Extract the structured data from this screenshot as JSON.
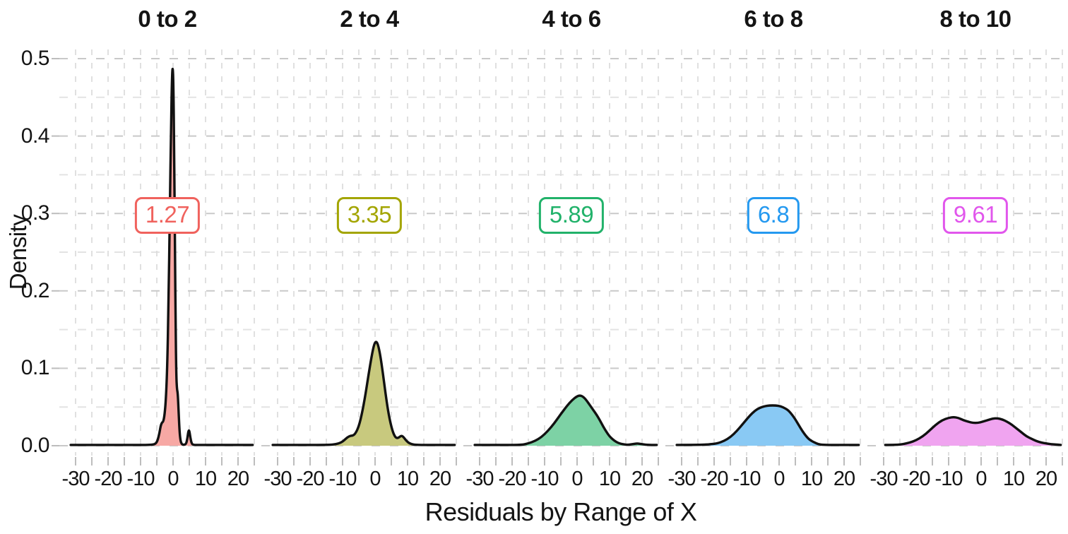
{
  "chart_data": {
    "type": "area",
    "subtype": "faceted-density",
    "title": "",
    "xlabel": "Residuals by Range of X",
    "ylabel": "Density",
    "x_ticks": [
      "-30",
      "-20",
      "-10",
      "0",
      "10",
      "20"
    ],
    "y_ticks": [
      "0.0",
      "0.1",
      "0.2",
      "0.3",
      "0.4",
      "0.5"
    ],
    "x_range": [
      -35,
      25
    ],
    "y_range": [
      0,
      0.5
    ],
    "grid": {
      "style": "dashed",
      "minor_y_step": 0.05,
      "minor_x_step": 5,
      "color_major": "#c9c9c9",
      "color_minor": "#e3e3e3",
      "color_vertical": "#dcdcdc"
    },
    "legend": "none",
    "curve_stroke": "#111111",
    "facets": [
      {
        "title": "0 to 2",
        "mean_label": "1.27",
        "color": "#F0625D",
        "fill": "#F7A8A4",
        "points": [
          [
            -31.5,
            0.001
          ],
          [
            -20,
            0.001
          ],
          [
            -10,
            0.001
          ],
          [
            -7,
            0.001
          ],
          [
            -5.5,
            0.002
          ],
          [
            -4.8,
            0.006
          ],
          [
            -4.2,
            0.016
          ],
          [
            -3.8,
            0.026
          ],
          [
            -3.4,
            0.03
          ],
          [
            -3,
            0.031
          ],
          [
            -2.6,
            0.04
          ],
          [
            -2.2,
            0.06
          ],
          [
            -1.8,
            0.1
          ],
          [
            -1.4,
            0.18
          ],
          [
            -1,
            0.3
          ],
          [
            -0.6,
            0.42
          ],
          [
            -0.3,
            0.48
          ],
          [
            -0.1,
            0.49
          ],
          [
            0.1,
            0.47
          ],
          [
            0.35,
            0.38
          ],
          [
            0.6,
            0.25
          ],
          [
            0.8,
            0.15
          ],
          [
            1,
            0.09
          ],
          [
            1.2,
            0.073
          ],
          [
            1.45,
            0.068
          ],
          [
            1.7,
            0.045
          ],
          [
            2,
            0.018
          ],
          [
            2.3,
            0.006
          ],
          [
            2.7,
            0.002
          ],
          [
            3.2,
            0.001
          ],
          [
            4,
            0.002
          ],
          [
            4.4,
            0.009
          ],
          [
            4.7,
            0.019
          ],
          [
            5,
            0.02
          ],
          [
            5.3,
            0.011
          ],
          [
            5.7,
            0.003
          ],
          [
            6.2,
            0.001
          ],
          [
            8,
            0.001
          ],
          [
            15,
            0.001
          ],
          [
            24.5,
            0.001
          ]
        ]
      },
      {
        "title": "2 to 4",
        "mean_label": "3.35",
        "color": "#A3A500",
        "fill": "#C8C97E",
        "points": [
          [
            -31.5,
            0.001
          ],
          [
            -22,
            0.001
          ],
          [
            -14,
            0.001
          ],
          [
            -12,
            0.002
          ],
          [
            -10.5,
            0.004
          ],
          [
            -9.5,
            0.007
          ],
          [
            -8.5,
            0.011
          ],
          [
            -7.5,
            0.013
          ],
          [
            -6.8,
            0.013
          ],
          [
            -6,
            0.016
          ],
          [
            -5,
            0.025
          ],
          [
            -4,
            0.042
          ],
          [
            -3,
            0.065
          ],
          [
            -2,
            0.092
          ],
          [
            -1,
            0.117
          ],
          [
            -0.3,
            0.131
          ],
          [
            0.3,
            0.135
          ],
          [
            0.9,
            0.131
          ],
          [
            1.6,
            0.117
          ],
          [
            2.4,
            0.094
          ],
          [
            3.2,
            0.068
          ],
          [
            4,
            0.045
          ],
          [
            4.8,
            0.028
          ],
          [
            5.6,
            0.016
          ],
          [
            6.4,
            0.01
          ],
          [
            7.2,
            0.01
          ],
          [
            8,
            0.013
          ],
          [
            8.6,
            0.012
          ],
          [
            9.3,
            0.008
          ],
          [
            10.2,
            0.004
          ],
          [
            11.2,
            0.002
          ],
          [
            12.5,
            0.001
          ],
          [
            16,
            0.001
          ],
          [
            24.5,
            0.001
          ]
        ]
      },
      {
        "title": "4 to 6",
        "mean_label": "5.89",
        "color": "#21B26A",
        "fill": "#7DD2A5",
        "points": [
          [
            -31.5,
            0.001
          ],
          [
            -22,
            0.001
          ],
          [
            -17,
            0.001
          ],
          [
            -15,
            0.003
          ],
          [
            -13,
            0.006
          ],
          [
            -11,
            0.011
          ],
          [
            -9,
            0.019
          ],
          [
            -7,
            0.029
          ],
          [
            -5,
            0.041
          ],
          [
            -3,
            0.052
          ],
          [
            -1.5,
            0.059
          ],
          [
            0,
            0.064
          ],
          [
            1,
            0.065
          ],
          [
            2,
            0.063
          ],
          [
            3,
            0.058
          ],
          [
            4,
            0.052
          ],
          [
            5,
            0.046
          ],
          [
            6,
            0.04
          ],
          [
            7,
            0.033
          ],
          [
            8,
            0.025
          ],
          [
            9,
            0.018
          ],
          [
            10,
            0.012
          ],
          [
            11,
            0.008
          ],
          [
            12,
            0.005
          ],
          [
            13,
            0.003
          ],
          [
            14,
            0.002
          ],
          [
            15.5,
            0.001
          ],
          [
            17,
            0.002
          ],
          [
            18.5,
            0.003
          ],
          [
            20,
            0.002
          ],
          [
            21.5,
            0.001
          ],
          [
            24.5,
            0.001
          ]
        ]
      },
      {
        "title": "6 to 8",
        "mean_label": "6.8",
        "color": "#2499F0",
        "fill": "#89C9F4",
        "points": [
          [
            -31.5,
            0.001
          ],
          [
            -24,
            0.001
          ],
          [
            -21,
            0.002
          ],
          [
            -19,
            0.003
          ],
          [
            -17,
            0.006
          ],
          [
            -15,
            0.011
          ],
          [
            -13,
            0.019
          ],
          [
            -11,
            0.029
          ],
          [
            -9,
            0.039
          ],
          [
            -7.5,
            0.045
          ],
          [
            -6,
            0.049
          ],
          [
            -4.5,
            0.051
          ],
          [
            -3,
            0.052
          ],
          [
            -1,
            0.052
          ],
          [
            0.5,
            0.051
          ],
          [
            2,
            0.048
          ],
          [
            3,
            0.045
          ],
          [
            4,
            0.04
          ],
          [
            5,
            0.034
          ],
          [
            6,
            0.027
          ],
          [
            7,
            0.02
          ],
          [
            8,
            0.014
          ],
          [
            9,
            0.009
          ],
          [
            10,
            0.006
          ],
          [
            11,
            0.004
          ],
          [
            12,
            0.002
          ],
          [
            13.5,
            0.001
          ],
          [
            17,
            0.001
          ],
          [
            24.5,
            0.001
          ]
        ]
      },
      {
        "title": "8 to 10",
        "mean_label": "9.61",
        "color": "#E156EC",
        "fill": "#F0A4F0",
        "points": [
          [
            -29.5,
            0.001
          ],
          [
            -26,
            0.001
          ],
          [
            -24,
            0.002
          ],
          [
            -22,
            0.004
          ],
          [
            -20,
            0.007
          ],
          [
            -18,
            0.012
          ],
          [
            -16,
            0.019
          ],
          [
            -14,
            0.027
          ],
          [
            -12,
            0.033
          ],
          [
            -10,
            0.036
          ],
          [
            -8.5,
            0.037
          ],
          [
            -7,
            0.036
          ],
          [
            -5.5,
            0.033
          ],
          [
            -4,
            0.031
          ],
          [
            -2.5,
            0.0295
          ],
          [
            -1,
            0.0295
          ],
          [
            0.5,
            0.031
          ],
          [
            2,
            0.033
          ],
          [
            3.5,
            0.035
          ],
          [
            5,
            0.0355
          ],
          [
            6.5,
            0.034
          ],
          [
            8,
            0.031
          ],
          [
            9.5,
            0.027
          ],
          [
            11,
            0.022
          ],
          [
            12.5,
            0.017
          ],
          [
            14,
            0.012
          ],
          [
            15.5,
            0.009
          ],
          [
            17,
            0.006
          ],
          [
            18.5,
            0.004
          ],
          [
            20,
            0.003
          ],
          [
            21.5,
            0.002
          ],
          [
            23,
            0.0015
          ],
          [
            24.5,
            0.001
          ]
        ]
      }
    ]
  }
}
